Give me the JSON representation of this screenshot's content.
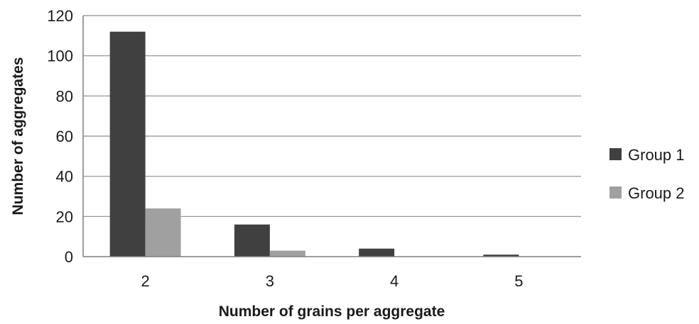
{
  "chart_data": {
    "type": "bar",
    "title": "",
    "xlabel": "Number of grains per aggregate",
    "ylabel": "Number of aggregates",
    "categories": [
      "2",
      "3",
      "4",
      "5"
    ],
    "series": [
      {
        "name": "Group 1",
        "values": [
          112,
          16,
          4,
          1
        ],
        "color": "#404040"
      },
      {
        "name": "Group 2",
        "values": [
          24,
          3,
          0,
          0
        ],
        "color": "#a0a0a0"
      }
    ],
    "ylim": [
      0,
      120
    ],
    "yticks": [
      "0",
      "20",
      "40",
      "60",
      "80",
      "100",
      "120"
    ],
    "grid": true,
    "legend_position": "right"
  }
}
